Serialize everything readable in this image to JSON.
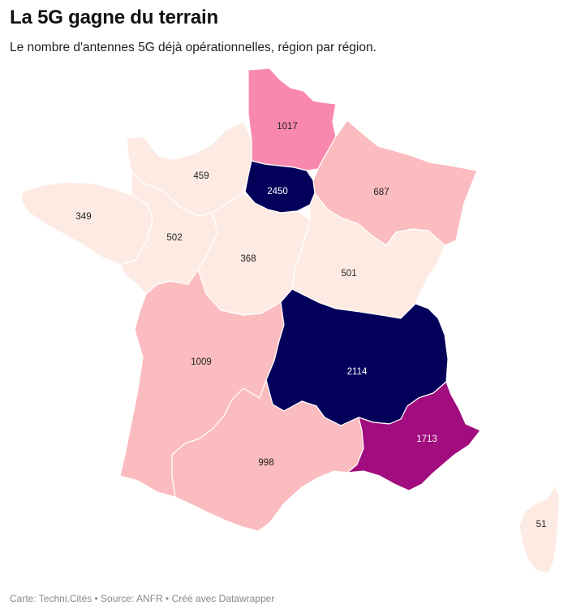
{
  "header": {
    "title": "La 5G gagne du terrain",
    "subtitle": "Le nombre d'antennes 5G déjà opérationnelles, région par région."
  },
  "colors": {
    "lowest": "#fdebe3",
    "low": "#fbbcbf",
    "mid": "#f988ae",
    "high": "#a10c7e",
    "highest": "#03005a"
  },
  "regions": [
    {
      "id": "hauts-de-france",
      "value": "1017",
      "color": "#f988ae"
    },
    {
      "id": "normandie",
      "value": "459",
      "color": "#fdebe3"
    },
    {
      "id": "ile-de-france",
      "value": "2450",
      "color": "#03005a"
    },
    {
      "id": "grand-est",
      "value": "687",
      "color": "#fbbcbf"
    },
    {
      "id": "bretagne",
      "value": "349",
      "color": "#fdebe3"
    },
    {
      "id": "pays-de-la-loire",
      "value": "502",
      "color": "#fdebe3"
    },
    {
      "id": "centre-val-de-loire",
      "value": "368",
      "color": "#fdebe3"
    },
    {
      "id": "bourgogne-franche-comte",
      "value": "501",
      "color": "#fdebe3"
    },
    {
      "id": "nouvelle-aquitaine",
      "value": "1009",
      "color": "#fbbcbf"
    },
    {
      "id": "auvergne-rhone-alpes",
      "value": "2114",
      "color": "#03005a"
    },
    {
      "id": "occitanie",
      "value": "998",
      "color": "#fbbcbf"
    },
    {
      "id": "provence-alpes-cote-d-azur",
      "value": "1713",
      "color": "#a10c7e"
    },
    {
      "id": "corse",
      "value": "51",
      "color": "#fdebe3"
    }
  ],
  "footer": {
    "text": "Carte: Techni.Cités • Source: ANFR • Créé avec Datawrapper"
  }
}
